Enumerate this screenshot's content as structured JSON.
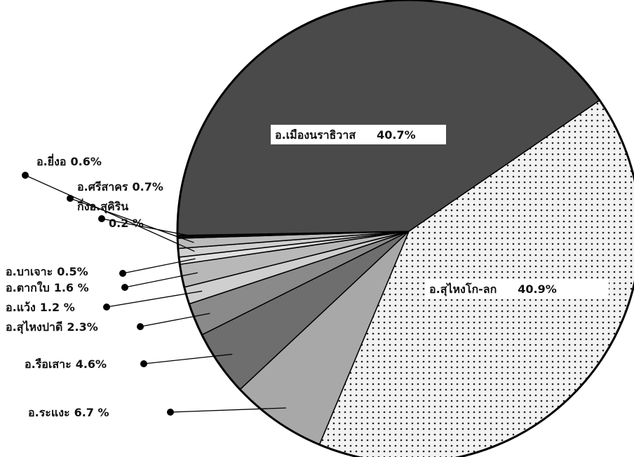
{
  "chart_data": {
    "type": "pie",
    "categories": [
      "อ.สุไหงโก-ลก",
      "อ.ระแงะ",
      "อ.รือเสาะ",
      "อ.สุไหงปาดี",
      "อ.แว้ง",
      "อ.ตากใบ",
      "อ.บาเจาะ",
      "อ.ยี่งอ",
      "อ.ศรีสาคร",
      "กิ่งอ.สุคิริน",
      "อ.เมืองนราธิวาส"
    ],
    "values": [
      40.9,
      6.7,
      4.6,
      2.3,
      1.2,
      1.6,
      0.5,
      0.6,
      0.7,
      0.2,
      40.7
    ],
    "value_labels": [
      "40.9%",
      "6.7 %",
      "4.6%",
      "2.3%",
      "1.2 %",
      "1.6 %",
      "0.5%",
      "0.6%",
      "0.7%",
      "0.2 %",
      "40.7%"
    ],
    "colors": [
      "#f2f2f2",
      "#a8a8a8",
      "#6e6e6e",
      "#8a8a8a",
      "#cfcfcf",
      "#b8b8b8",
      "#e0e0e0",
      "#d0d0d0",
      "#bbbbbb",
      "#0a0a0a",
      "#4a4a4a"
    ]
  }
}
